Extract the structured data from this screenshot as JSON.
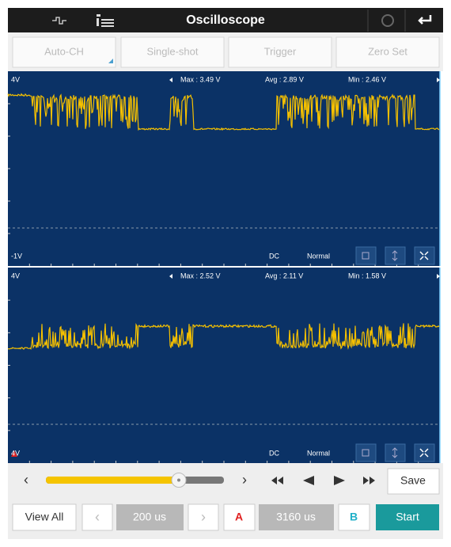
{
  "header": {
    "title": "Oscilloscope"
  },
  "toolbar": [
    "Auto-CH",
    "Single-shot",
    "Trigger",
    "Zero Set"
  ],
  "channels": [
    {
      "top_label": "4V",
      "max": "Max : 3.49 V",
      "avg": "Avg : 2.89 V",
      "min": "Min : 2.46 V",
      "bottom_label": "-1V",
      "coupling": "DC",
      "mode": "Normal"
    },
    {
      "top_label": "4V",
      "max": "Max : 2.52 V",
      "avg": "Avg : 2.11 V",
      "min": "Min : 1.58 V",
      "bottom_label": "4V",
      "coupling": "DC",
      "mode": "Normal"
    }
  ],
  "controls": {
    "save": "Save",
    "view_all": "View All",
    "time_div": "200 us",
    "cursor_a": "A",
    "position": "3160 us",
    "cursor_b": "B",
    "start": "Start"
  }
}
